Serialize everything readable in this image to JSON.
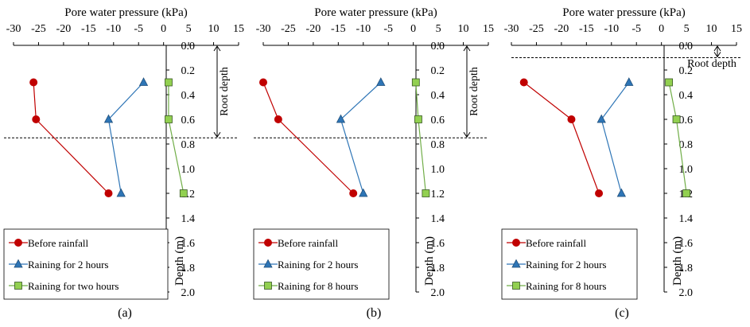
{
  "colors": {
    "before": "#c00000",
    "rain2": "#2e75b6",
    "rain_long": "#70ad47",
    "rain_long_fill": "#92d050",
    "axis": "#000000"
  },
  "chart_data": [
    {
      "type": "line",
      "panel_label": "(a)",
      "title": "Pore water pressure (kPa)",
      "ylabel": "Depth (m)",
      "xlim": [
        -30,
        15
      ],
      "ylim": [
        0,
        2.0
      ],
      "x_ticks": [
        "-30",
        "-25",
        "-20",
        "-15",
        "-10",
        "-5",
        "0",
        "5",
        "10",
        "15"
      ],
      "y_ticks": [
        "0.0",
        "0.2",
        "0.4",
        "0.6",
        "0.8",
        "1.0",
        "1.2",
        "1.4",
        "1.6",
        "1.8",
        "2.0"
      ],
      "root_depth": 0.75,
      "root_label": "Root depth",
      "legend_position": "bottom-left",
      "series": [
        {
          "name": "Before rainfall",
          "marker": "circle",
          "points": [
            [
              -26,
              0.3
            ],
            [
              -25.5,
              0.6
            ],
            [
              -11,
              1.2
            ]
          ]
        },
        {
          "name": "Raining for 2 hours",
          "marker": "triangle",
          "points": [
            [
              -4,
              0.3
            ],
            [
              -11,
              0.6
            ],
            [
              -8.5,
              1.2
            ]
          ]
        },
        {
          "name": "Raining for two hours",
          "marker": "square",
          "points": [
            [
              1,
              0.3
            ],
            [
              1,
              0.6
            ],
            [
              4,
              1.2
            ]
          ]
        }
      ]
    },
    {
      "type": "line",
      "panel_label": "(b)",
      "title": "Pore water pressure (kPa)",
      "ylabel": "Depth (m)",
      "xlim": [
        -30,
        15
      ],
      "ylim": [
        0,
        2.0
      ],
      "x_ticks": [
        "-30",
        "-25",
        "-20",
        "-15",
        "-10",
        "-5",
        "0",
        "5",
        "10",
        "15"
      ],
      "y_ticks": [
        "0.0",
        "0.2",
        "0.4",
        "0.6",
        "0.8",
        "1.0",
        "1.2",
        "1.4",
        "1.6",
        "1.8",
        "2.0"
      ],
      "root_depth": 0.75,
      "root_label": "Root depth",
      "legend_position": "bottom-left",
      "series": [
        {
          "name": "Before rainfall",
          "marker": "circle",
          "points": [
            [
              -30,
              0.3
            ],
            [
              -27,
              0.6
            ],
            [
              -12,
              1.2
            ]
          ]
        },
        {
          "name": "Raining for 2 hours",
          "marker": "triangle",
          "points": [
            [
              -6.5,
              0.3
            ],
            [
              -14.5,
              0.6
            ],
            [
              -10,
              1.2
            ]
          ]
        },
        {
          "name": "Raining for 8 hours",
          "marker": "square",
          "points": [
            [
              0.5,
              0.3
            ],
            [
              1,
              0.6
            ],
            [
              2.5,
              1.2
            ]
          ]
        }
      ]
    },
    {
      "type": "line",
      "panel_label": "(c)",
      "title": "Pore water pressure (kPa)",
      "ylabel": "Depth (m)",
      "xlim": [
        -30,
        15
      ],
      "ylim": [
        0,
        2.0
      ],
      "x_ticks": [
        "-30",
        "-25",
        "-20",
        "-15",
        "-10",
        "-5",
        "0",
        "5",
        "10",
        "15"
      ],
      "y_ticks": [
        "0.0",
        "0.2",
        "0.4",
        "0.6",
        "0.8",
        "1.0",
        "1.2",
        "1.4",
        "1.6",
        "1.8",
        "2.0"
      ],
      "root_depth": 0.1,
      "root_label": "Root depth",
      "legend_position": "bottom-left",
      "series": [
        {
          "name": "Before rainfall",
          "marker": "circle",
          "points": [
            [
              -27.5,
              0.3
            ],
            [
              -18,
              0.6
            ],
            [
              -12.5,
              1.2
            ]
          ]
        },
        {
          "name": "Raining for 2 hours",
          "marker": "triangle",
          "points": [
            [
              -6.5,
              0.3
            ],
            [
              -12,
              0.6
            ],
            [
              -8,
              1.2
            ]
          ]
        },
        {
          "name": "Raining for 8 hours",
          "marker": "square",
          "points": [
            [
              1.5,
              0.3
            ],
            [
              3,
              0.6
            ],
            [
              5,
              1.2
            ]
          ]
        }
      ]
    }
  ]
}
